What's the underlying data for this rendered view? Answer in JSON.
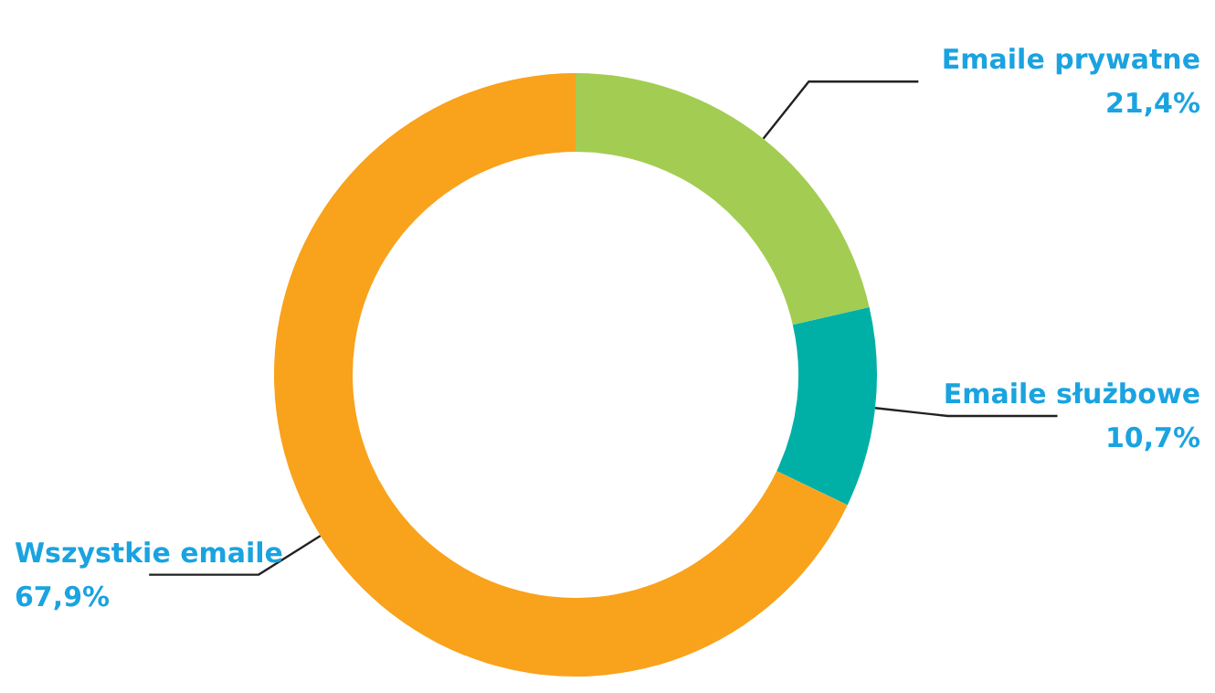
{
  "chart_data": {
    "type": "donut",
    "categories": [
      "Emaile prywatne",
      "Emaile służbowe",
      "Wszystkie emaile"
    ],
    "values": [
      21.4,
      10.7,
      67.9
    ],
    "colors": [
      "#a2cd52",
      "#00b0a6",
      "#f9a21b"
    ],
    "value_labels": [
      "21,4%",
      "10,7%",
      "67,9%"
    ]
  }
}
